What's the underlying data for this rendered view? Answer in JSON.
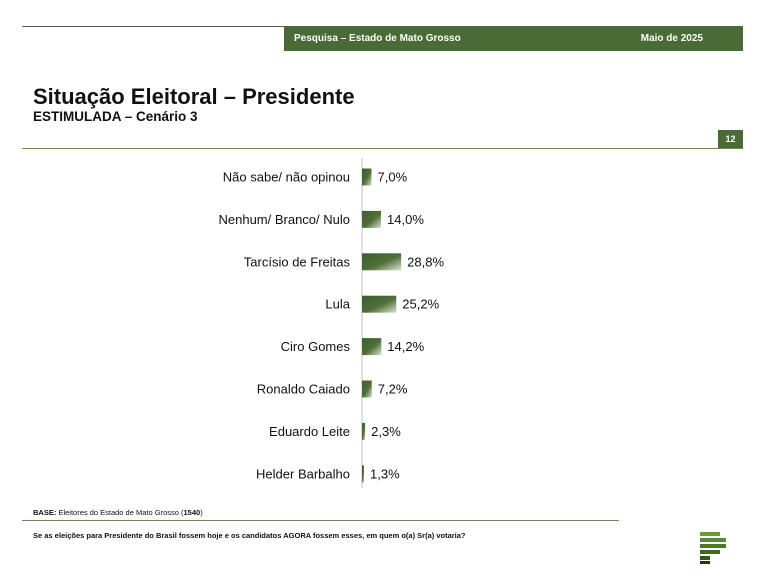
{
  "header": {
    "survey": "Pesquisa – Estado de Mato Grosso",
    "date": "Maio de 2025"
  },
  "title": "Situação Eleitoral – Presidente",
  "subtitle": "ESTIMULADA – Cenário 3",
  "page_number": "12",
  "footer": {
    "base_label": "BASE:",
    "base_text": "Eleitores do Estado de Mato Grosso",
    "base_count": "1540",
    "question": "Se as eleições para Presidente do Brasil fossem hoje e os candidatos AGORA fossem esses, em quem o(a) Sr(a) votaria?"
  },
  "colors": {
    "brand": "#4a6b35",
    "bar_dark": "#3d5c2c",
    "bar_light": "#ffffff"
  },
  "chart_data": {
    "type": "bar",
    "orientation": "horizontal",
    "categories": [
      "Não sabe/ não opinou",
      "Nenhum/ Branco/ Nulo",
      "Tarcísio de Freitas",
      "Lula",
      "Ciro Gomes",
      "Ronaldo Caiado",
      "Eduardo Leite",
      "Helder Barbalho"
    ],
    "values": [
      7.0,
      14.0,
      28.8,
      25.2,
      14.2,
      7.2,
      2.3,
      1.3
    ],
    "value_labels": [
      "7,0%",
      "14,0%",
      "28,8%",
      "25,2%",
      "14,2%",
      "7,2%",
      "2,3%",
      "1,3%"
    ],
    "unit": "%",
    "grid": false,
    "legend": "none"
  }
}
